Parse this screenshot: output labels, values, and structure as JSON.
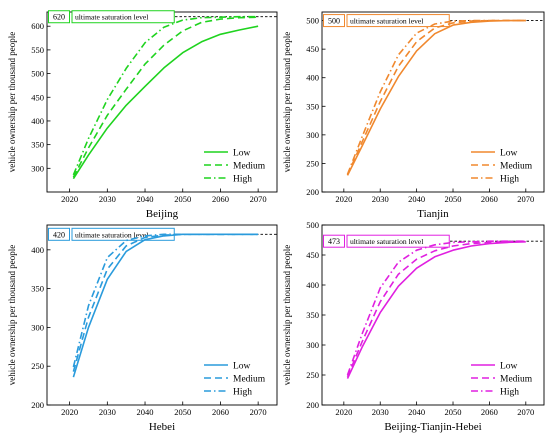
{
  "colors": {
    "beijing": "#1fd31f",
    "tianjin": "#f0882e",
    "hebei": "#2a9bdc",
    "bth": "#e020e0",
    "axis": "#000000",
    "saturation_line": "#000000"
  },
  "chart_data": [
    {
      "id": "beijing",
      "type": "line",
      "xlabel": "Beijing",
      "ylabel": "vehicle ownership per thousand people",
      "xlim": [
        2014,
        2075
      ],
      "ylim": [
        250,
        630
      ],
      "xticks": [
        2020,
        2030,
        2040,
        2050,
        2060,
        2070
      ],
      "yticks": [
        300,
        350,
        400,
        450,
        500,
        550,
        600
      ],
      "saturation": {
        "value": 620,
        "label": "ultimate saturation level"
      },
      "legend": "lower-right",
      "series": [
        {
          "name": "Low",
          "style": "solid",
          "x": [
            2021,
            2025,
            2030,
            2035,
            2040,
            2045,
            2050,
            2055,
            2060,
            2065,
            2070
          ],
          "y": [
            278,
            328,
            385,
            433,
            473,
            512,
            544,
            567,
            583,
            592,
            600
          ]
        },
        {
          "name": "Medium",
          "style": "dashed",
          "x": [
            2021,
            2025,
            2030,
            2035,
            2040,
            2045,
            2050,
            2055,
            2060,
            2065,
            2070
          ],
          "y": [
            281,
            343,
            412,
            467,
            520,
            560,
            590,
            608,
            615,
            618,
            619
          ]
        },
        {
          "name": "High",
          "style": "dashdot",
          "x": [
            2021,
            2025,
            2030,
            2035,
            2040,
            2045,
            2050,
            2055,
            2060,
            2065,
            2070
          ],
          "y": [
            286,
            363,
            445,
            511,
            565,
            598,
            613,
            618,
            619,
            620,
            620
          ]
        }
      ]
    },
    {
      "id": "tianjin",
      "type": "line",
      "xlabel": "Tianjin",
      "ylabel": "vehicle ownership per thousand people",
      "xlim": [
        2014,
        2075
      ],
      "ylim": [
        200,
        515
      ],
      "xticks": [
        2020,
        2030,
        2040,
        2050,
        2060,
        2070
      ],
      "yticks": [
        200,
        250,
        300,
        350,
        400,
        450,
        500
      ],
      "saturation": {
        "value": 500,
        "label": "ultimate saturation level"
      },
      "legend": "lower-right",
      "series": [
        {
          "name": "Low",
          "style": "solid",
          "x": [
            2021,
            2025,
            2030,
            2035,
            2040,
            2045,
            2050,
            2055,
            2060,
            2065,
            2070
          ],
          "y": [
            229,
            280,
            345,
            402,
            447,
            477,
            492,
            497,
            499,
            500,
            500
          ]
        },
        {
          "name": "Medium",
          "style": "dashed",
          "x": [
            2021,
            2025,
            2030,
            2035,
            2040,
            2045,
            2050,
            2055,
            2060,
            2065,
            2070
          ],
          "y": [
            230,
            287,
            358,
            420,
            463,
            487,
            496,
            499,
            500,
            500,
            500
          ]
        },
        {
          "name": "High",
          "style": "dashdot",
          "x": [
            2021,
            2025,
            2030,
            2035,
            2040,
            2045,
            2050,
            2055,
            2060,
            2065,
            2070
          ],
          "y": [
            231,
            296,
            375,
            440,
            478,
            494,
            499,
            500,
            500,
            500,
            500
          ]
        }
      ]
    },
    {
      "id": "hebei",
      "type": "line",
      "xlabel": "Hebei",
      "ylabel": "vehicle ownership per thousand people",
      "xlim": [
        2014,
        2075
      ],
      "ylim": [
        200,
        432
      ],
      "xticks": [
        2020,
        2030,
        2040,
        2050,
        2060,
        2070
      ],
      "yticks": [
        200,
        250,
        300,
        350,
        400
      ],
      "saturation": {
        "value": 420,
        "label": "ultimate saturation level"
      },
      "legend": "lower-right",
      "series": [
        {
          "name": "Low",
          "style": "solid",
          "x": [
            2021,
            2025,
            2030,
            2035,
            2040,
            2045,
            2050,
            2055,
            2060,
            2065,
            2070
          ],
          "y": [
            236,
            300,
            362,
            398,
            413,
            418,
            420,
            420,
            420,
            420,
            420
          ]
        },
        {
          "name": "Medium",
          "style": "dashed",
          "x": [
            2021,
            2025,
            2030,
            2035,
            2040,
            2045,
            2050,
            2055,
            2060,
            2065,
            2070
          ],
          "y": [
            243,
            313,
            375,
            405,
            416,
            419,
            420,
            420,
            420,
            420,
            420
          ]
        },
        {
          "name": "High",
          "style": "dashdot",
          "x": [
            2021,
            2025,
            2030,
            2035,
            2040,
            2045,
            2050,
            2055,
            2060,
            2065,
            2070
          ],
          "y": [
            249,
            328,
            390,
            412,
            418,
            420,
            420,
            420,
            420,
            420,
            420
          ]
        }
      ]
    },
    {
      "id": "bth",
      "type": "line",
      "xlabel": "Beijing-Tianjin-Hebei",
      "ylabel": "vehicle ownership per thousand people",
      "xlim": [
        2014,
        2075
      ],
      "ylim": [
        200,
        500
      ],
      "xticks": [
        2020,
        2030,
        2040,
        2050,
        2060,
        2070
      ],
      "yticks": [
        200,
        250,
        300,
        350,
        400,
        450,
        500
      ],
      "saturation": {
        "value": 473,
        "label": "ultimate saturation level"
      },
      "legend": "lower-right",
      "series": [
        {
          "name": "Low",
          "style": "solid",
          "x": [
            2021,
            2025,
            2030,
            2035,
            2040,
            2045,
            2050,
            2055,
            2060,
            2065,
            2070
          ],
          "y": [
            244,
            296,
            354,
            398,
            428,
            447,
            458,
            465,
            469,
            471,
            472
          ]
        },
        {
          "name": "Medium",
          "style": "dashed",
          "x": [
            2021,
            2025,
            2030,
            2035,
            2040,
            2045,
            2050,
            2055,
            2060,
            2065,
            2070
          ],
          "y": [
            247,
            305,
            372,
            418,
            443,
            457,
            465,
            469,
            471,
            472,
            473
          ]
        },
        {
          "name": "High",
          "style": "dashdot",
          "x": [
            2021,
            2025,
            2030,
            2035,
            2040,
            2045,
            2050,
            2055,
            2060,
            2065,
            2070
          ],
          "y": [
            250,
            318,
            395,
            438,
            458,
            467,
            471,
            472,
            473,
            473,
            473
          ]
        }
      ]
    }
  ]
}
